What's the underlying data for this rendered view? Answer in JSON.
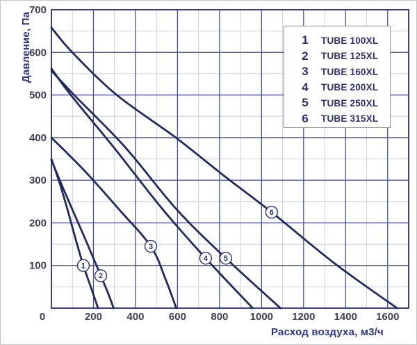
{
  "chart_data": {
    "type": "line",
    "title": "",
    "xlabel": "Расход воздуха, м3/ч",
    "ylabel": "Давление, Па",
    "xlim": [
      0,
      1700
    ],
    "ylim": [
      0,
      700
    ],
    "x_ticks": [
      0,
      200,
      400,
      600,
      800,
      1000,
      1200,
      1400,
      1600
    ],
    "y_ticks": [
      100,
      200,
      300,
      400,
      500,
      600,
      700
    ],
    "x_minor_step": 100,
    "y_minor_step": 50,
    "grid": "major+minor",
    "legend_position": "top-right",
    "series": [
      {
        "id": "1",
        "name": "TUBE 100XL",
        "points": [
          [
            0,
            350
          ],
          [
            38,
            295
          ],
          [
            76,
            232
          ],
          [
            114,
            164
          ],
          [
            152,
            100
          ],
          [
            190,
            46
          ],
          [
            222,
            0
          ]
        ],
        "marker": [
          152,
          100
        ]
      },
      {
        "id": "2",
        "name": "TUBE 125XL",
        "points": [
          [
            0,
            347
          ],
          [
            50,
            288
          ],
          [
            99,
            232
          ],
          [
            168,
            154
          ],
          [
            235,
            76
          ],
          [
            268,
            37
          ],
          [
            296,
            0
          ]
        ],
        "marker": [
          235,
          76
        ]
      },
      {
        "id": "3",
        "name": "TUBE 160XL",
        "points": [
          [
            0,
            400
          ],
          [
            160,
            321
          ],
          [
            321,
            232
          ],
          [
            473,
            145
          ],
          [
            543,
            68
          ],
          [
            594,
            0
          ]
        ],
        "marker": [
          473,
          145
        ]
      },
      {
        "id": "4",
        "name": "TUBE 200XL",
        "points": [
          [
            0,
            562
          ],
          [
            89,
            502
          ],
          [
            300,
            375
          ],
          [
            529,
            232
          ],
          [
            734,
            117
          ],
          [
            958,
            0
          ]
        ],
        "marker": [
          734,
          117
        ]
      },
      {
        "id": "5",
        "name": "TUBE 250XL",
        "points": [
          [
            0,
            557
          ],
          [
            112,
            498
          ],
          [
            350,
            378
          ],
          [
            595,
            232
          ],
          [
            830,
            117
          ],
          [
            1090,
            0
          ]
        ],
        "marker": [
          830,
          117
        ]
      },
      {
        "id": "6",
        "name": "TUBE 315XL",
        "points": [
          [
            0,
            658
          ],
          [
            99,
            600
          ],
          [
            311,
            500
          ],
          [
            592,
            400
          ],
          [
            820,
            311
          ],
          [
            1048,
            225
          ],
          [
            1350,
            104
          ],
          [
            1645,
            0
          ]
        ],
        "marker": [
          1048,
          225
        ]
      }
    ],
    "colors": {
      "curve": "#232a5c",
      "grid_major": "#4a4f93",
      "grid_minor": "#c9cfe3",
      "plot_border": "#3a3f80",
      "axis_title": "#2d3184",
      "tick_label": "#3d3d55",
      "legend_text": "#2c3070",
      "marker_fill": "#ffffff",
      "marker_stroke": "#2c3070",
      "background": "#ffffff"
    }
  }
}
